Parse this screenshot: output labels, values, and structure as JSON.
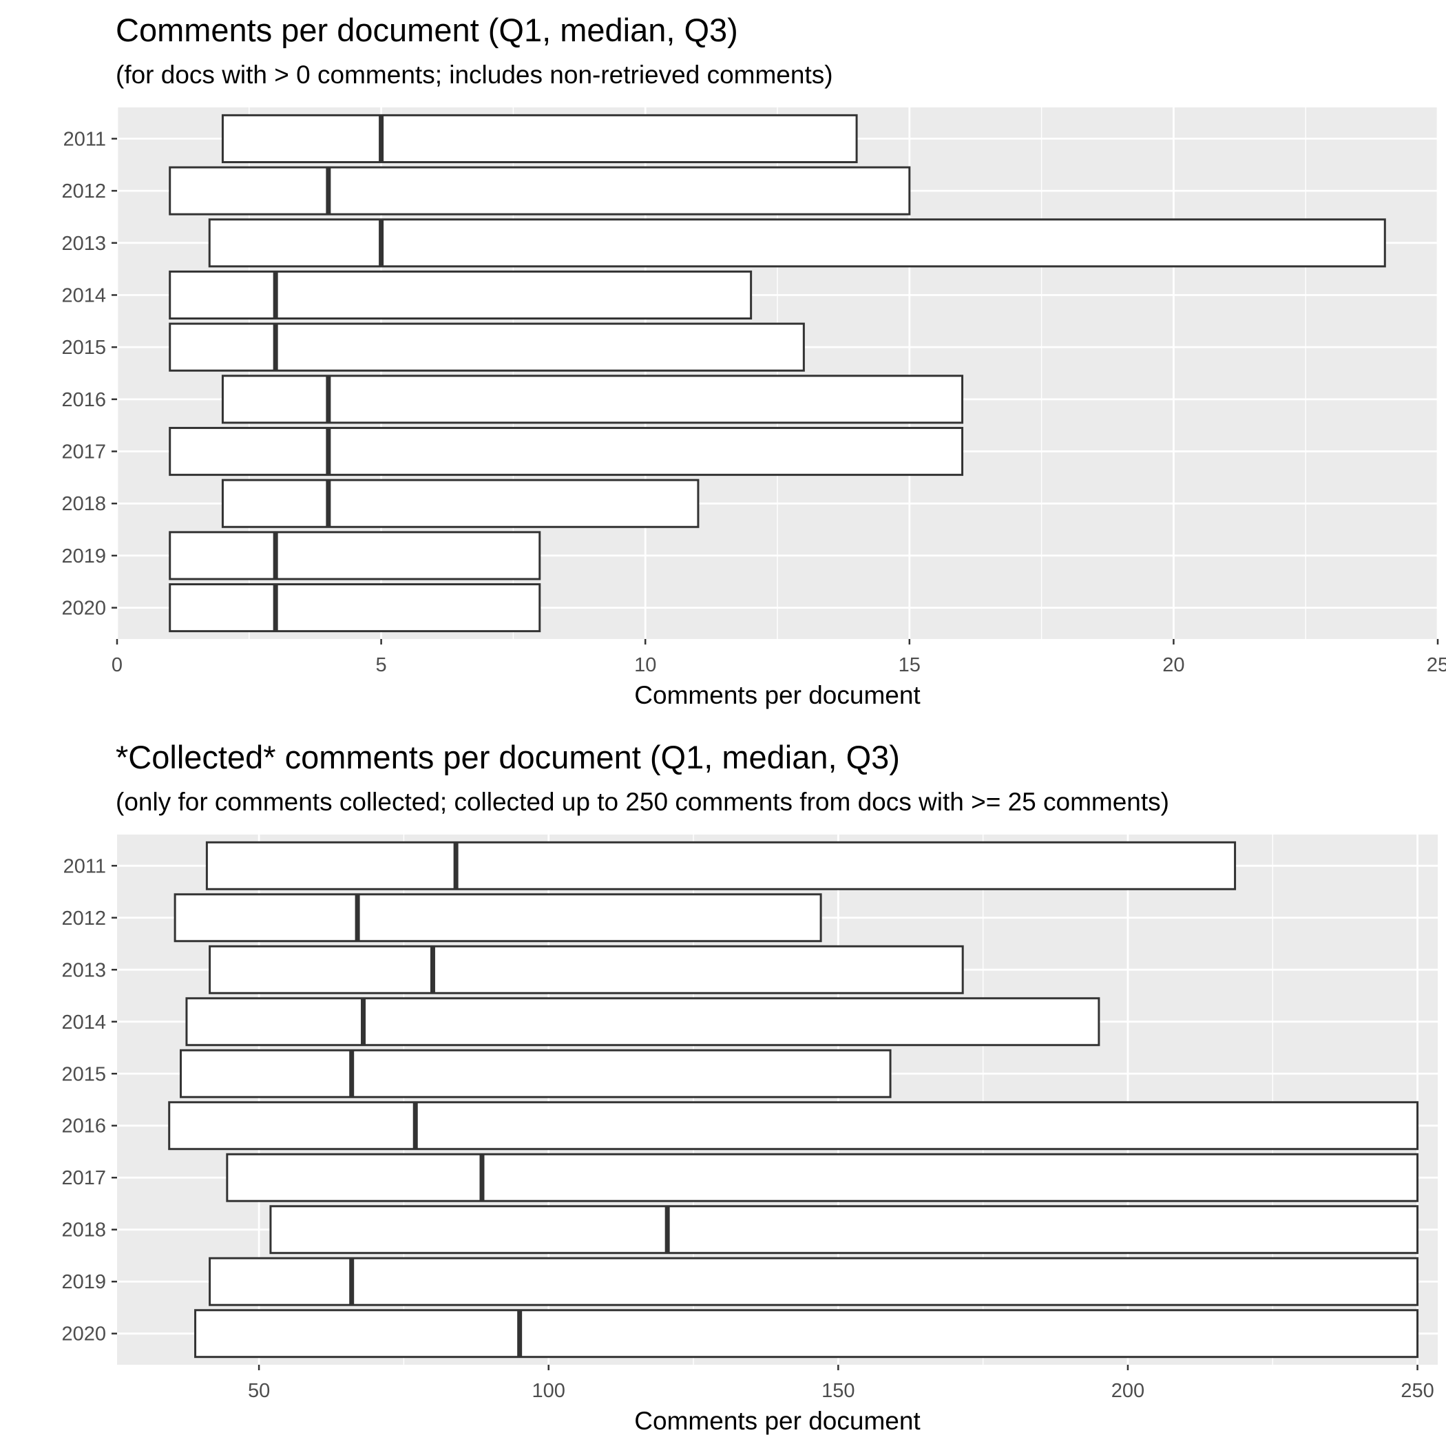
{
  "chart_data": [
    {
      "type": "bar",
      "orientation": "horizontal",
      "title": "Comments per document (Q1, median, Q3)",
      "subtitle": "(for docs with > 0 comments; includes non-retrieved comments)",
      "xlabel": "Comments per document",
      "ylabel": "",
      "xlim": [
        0,
        25
      ],
      "xticks": [
        0,
        5,
        10,
        15,
        20,
        25
      ],
      "grid": true,
      "categories": [
        "2011",
        "2012",
        "2013",
        "2014",
        "2015",
        "2016",
        "2017",
        "2018",
        "2019",
        "2020"
      ],
      "series": [
        {
          "name": "Q1",
          "values": [
            2,
            1,
            1.75,
            1,
            1,
            2,
            1,
            2,
            1,
            1
          ]
        },
        {
          "name": "median",
          "values": [
            5,
            4,
            5,
            3,
            3,
            4,
            4,
            4,
            3,
            3
          ]
        },
        {
          "name": "Q3",
          "values": [
            14,
            15,
            24,
            12,
            13,
            16,
            16,
            11,
            8,
            8
          ]
        }
      ]
    },
    {
      "type": "bar",
      "orientation": "horizontal",
      "title": "*Collected* comments per document (Q1, median, Q3)",
      "subtitle": "(only for comments collected; collected up to 250 comments from docs with >= 25 comments)",
      "xlabel": "Comments per document",
      "ylabel": "",
      "xlim": [
        25.5,
        253.5
      ],
      "xticks": [
        50,
        100,
        150,
        200,
        250
      ],
      "grid": true,
      "categories": [
        "2011",
        "2012",
        "2013",
        "2014",
        "2015",
        "2016",
        "2017",
        "2018",
        "2019",
        "2020"
      ],
      "series": [
        {
          "name": "Q1",
          "values": [
            41,
            35.5,
            41.5,
            37.5,
            36.5,
            34.5,
            44.5,
            52,
            41.5,
            39
          ]
        },
        {
          "name": "median",
          "values": [
            84,
            67,
            80,
            68,
            66,
            77,
            88.5,
            120.5,
            66,
            95
          ]
        },
        {
          "name": "Q3",
          "values": [
            218.5,
            147,
            171.5,
            195,
            159,
            250,
            250,
            250,
            250,
            250
          ]
        }
      ]
    }
  ]
}
